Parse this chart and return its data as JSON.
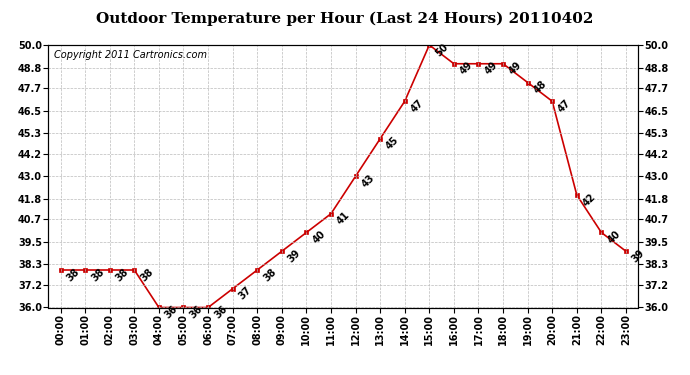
{
  "title": "Outdoor Temperature per Hour (Last 24 Hours) 20110402",
  "copyright": "Copyright 2011 Cartronics.com",
  "hours": [
    "00:00",
    "01:00",
    "02:00",
    "03:00",
    "04:00",
    "05:00",
    "06:00",
    "07:00",
    "08:00",
    "09:00",
    "10:00",
    "11:00",
    "12:00",
    "13:00",
    "14:00",
    "15:00",
    "16:00",
    "17:00",
    "18:00",
    "19:00",
    "20:00",
    "21:00",
    "22:00",
    "23:00"
  ],
  "temps": [
    38,
    38,
    38,
    38,
    36,
    36,
    36,
    37,
    38,
    39,
    40,
    41,
    43,
    45,
    47,
    50,
    49,
    49,
    49,
    48,
    47,
    42,
    40,
    39
  ],
  "ylim_min": 36.0,
  "ylim_max": 50.0,
  "yticks": [
    36.0,
    37.2,
    38.3,
    39.5,
    40.7,
    41.8,
    43.0,
    44.2,
    45.3,
    46.5,
    47.7,
    48.8,
    50.0
  ],
  "line_color": "#cc0000",
  "marker_color": "#cc0000",
  "bg_color": "#ffffff",
  "grid_color": "#bbbbbb",
  "title_fontsize": 11,
  "tick_fontsize": 7,
  "copyright_fontsize": 7,
  "annot_fontsize": 7
}
